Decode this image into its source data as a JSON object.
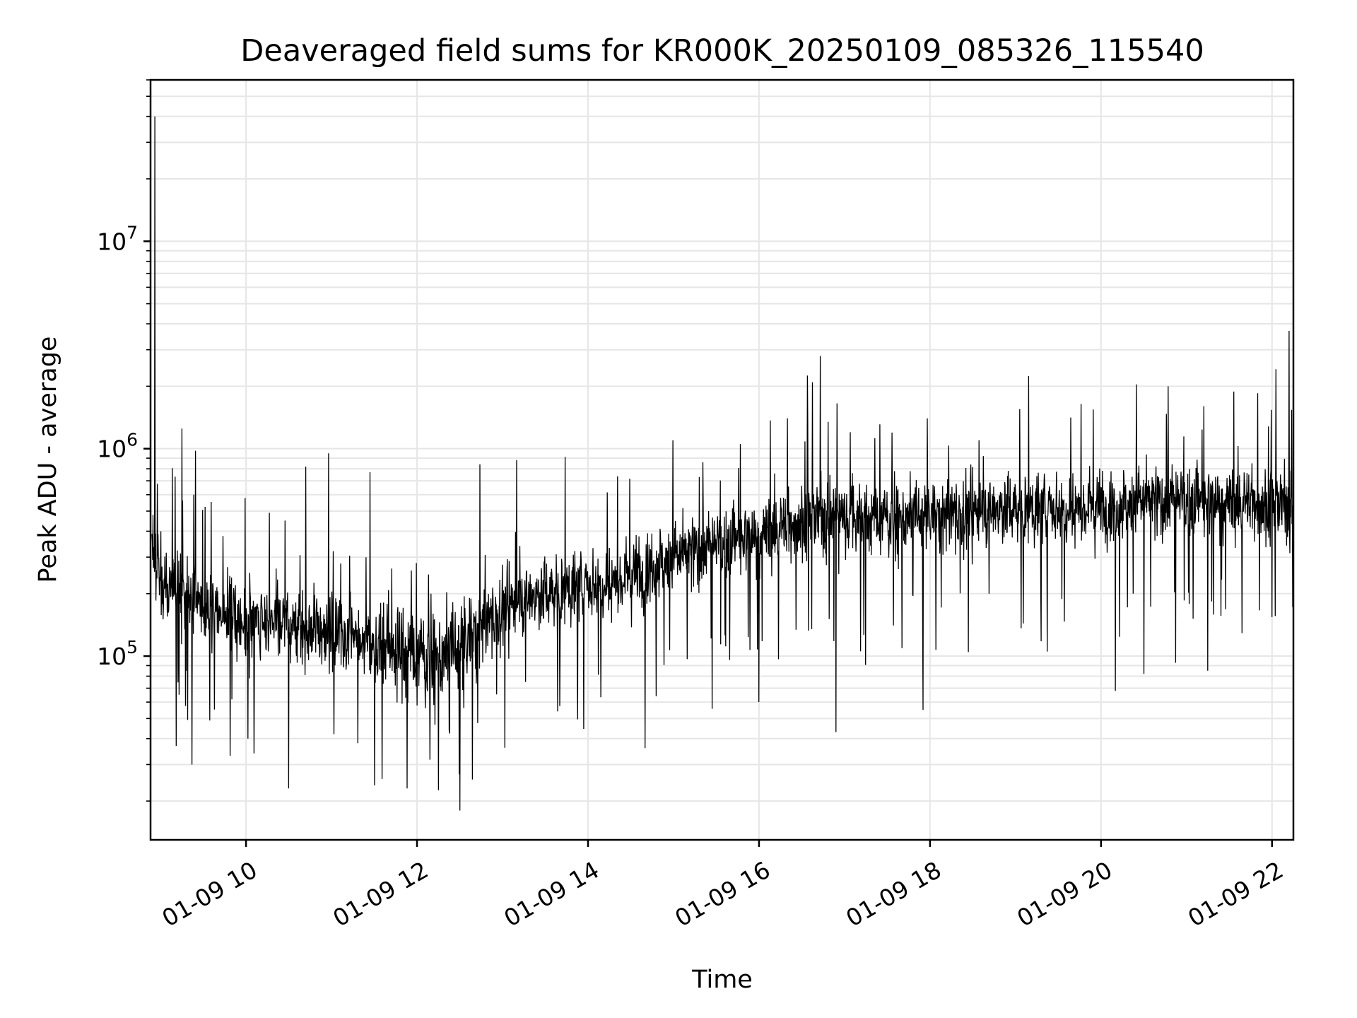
{
  "chart_data": {
    "type": "line",
    "title": "Deaveraged field sums for KR000K_20250109_085326_115540",
    "xlabel": "Time",
    "ylabel": "Peak ADU - average",
    "y_scale": "log",
    "xlim": [
      "01-09 08:53",
      "01-09 22:15"
    ],
    "ylim": [
      13000,
      60000000
    ],
    "grid": true,
    "line_color": "#000000",
    "x_ticks": [
      "01-09 10",
      "01-09 12",
      "01-09 14",
      "01-09 16",
      "01-09 18",
      "01-09 20",
      "01-09 22"
    ],
    "y_ticks": [
      {
        "base": "10",
        "exp": "5",
        "value": 100000
      },
      {
        "base": "10",
        "exp": "6",
        "value": 1000000
      },
      {
        "base": "10",
        "exp": "7",
        "value": 10000000
      }
    ],
    "series": [
      {
        "x_hours": [
          8.9,
          9.0,
          9.25,
          9.5,
          9.75,
          10.0,
          10.25,
          10.5,
          10.75,
          11.0,
          11.25,
          11.5,
          11.75,
          12.0,
          12.25,
          12.5,
          12.75,
          13.0,
          13.25,
          13.5,
          13.75,
          14.0,
          14.25,
          14.5,
          14.75,
          15.0,
          15.25,
          15.5,
          15.75,
          16.0,
          16.25,
          16.5,
          16.75,
          17.0,
          17.25,
          17.5,
          17.75,
          18.0,
          18.25,
          18.5,
          18.75,
          19.0,
          19.25,
          19.5,
          19.75,
          20.0,
          20.25,
          20.5,
          20.75,
          21.0,
          21.25,
          21.5,
          21.75,
          22.0,
          22.25
        ],
        "median": [
          350000,
          240000,
          200000,
          170000,
          160000,
          150000,
          145000,
          140000,
          135000,
          130000,
          125000,
          120000,
          110000,
          100000,
          100000,
          110000,
          140000,
          170000,
          190000,
          200000,
          210000,
          220000,
          230000,
          250000,
          280000,
          300000,
          320000,
          340000,
          360000,
          380000,
          420000,
          450000,
          470000,
          480000,
          470000,
          460000,
          470000,
          480000,
          490000,
          500000,
          510000,
          520000,
          510000,
          520000,
          530000,
          540000,
          550000,
          560000,
          560000,
          560000,
          550000,
          550000,
          560000,
          530000,
          540000
        ],
        "spikes": [
          {
            "x": "01-09 08:56",
            "y": 40000000
          },
          {
            "x": "01-09 09:15",
            "y": 1250000
          },
          {
            "x": "01-09 10:42",
            "y": 820000
          },
          {
            "x": "01-09 10:58",
            "y": 950000
          },
          {
            "x": "01-09 11:27",
            "y": 770000
          },
          {
            "x": "01-09 12:44",
            "y": 840000
          },
          {
            "x": "01-09 13:10",
            "y": 880000
          },
          {
            "x": "01-09 15:18",
            "y": 730000
          },
          {
            "x": "01-09 16:20",
            "y": 1400000
          },
          {
            "x": "01-09 16:34",
            "y": 2250000
          },
          {
            "x": "01-09 16:43",
            "y": 2800000
          },
          {
            "x": "01-09 17:58",
            "y": 1400000
          },
          {
            "x": "01-09 19:03",
            "y": 1550000
          },
          {
            "x": "01-09 20:47",
            "y": 2000000
          },
          {
            "x": "01-09 21:50",
            "y": 1850000
          },
          {
            "x": "01-09 22:12",
            "y": 3700000
          }
        ],
        "dips": [
          {
            "x": "01-09 09:22",
            "y": 30000
          },
          {
            "x": "01-09 10:30",
            "y": 23000
          },
          {
            "x": "01-09 11:53",
            "y": 23000
          },
          {
            "x": "01-09 12:30",
            "y": 18000
          },
          {
            "x": "01-09 14:40",
            "y": 36000
          },
          {
            "x": "01-09 16:00",
            "y": 60000
          },
          {
            "x": "01-09 16:54",
            "y": 43000
          },
          {
            "x": "01-09 17:55",
            "y": 55000
          },
          {
            "x": "01-09 20:10",
            "y": 68000
          },
          {
            "x": "01-09 20:30",
            "y": 82000
          },
          {
            "x": "01-09 21:15",
            "y": 85000
          }
        ]
      }
    ]
  }
}
